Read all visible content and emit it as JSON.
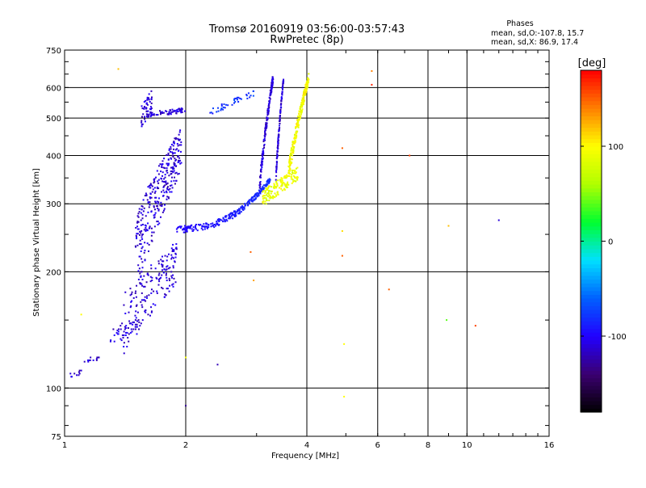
{
  "chart_data": {
    "type": "scatter",
    "title": "Tromsø 20160919 03:56:00-03:57:43",
    "subtitle": "RwPretec (8p)",
    "xlabel": "Frequency [MHz]",
    "ylabel": "Stationary phase Virtual Height [km]",
    "x_scale": "log",
    "y_scale": "log",
    "xlim": [
      1,
      16
    ],
    "ylim": [
      75,
      750
    ],
    "x_ticks": [
      1,
      2,
      4,
      6,
      8,
      10,
      16
    ],
    "y_ticks": [
      75,
      100,
      200,
      300,
      400,
      500,
      600,
      750
    ],
    "x_gridlines": [
      2,
      4,
      6,
      8,
      10
    ],
    "y_gridlines": [
      100,
      200,
      300,
      400,
      500,
      600
    ],
    "phase_stats": {
      "title": "Phases",
      "line_o": "mean, sd,O:-107.8, 15.7",
      "line_x": "mean, sd,X:  86.9, 17.4"
    },
    "colorbar": {
      "label": "[deg]",
      "range": [
        -180,
        180
      ],
      "ticks": [
        -100,
        0,
        100
      ],
      "colors": [
        "#000000",
        "#3b0070",
        "#2200ff",
        "#0060ff",
        "#00e0ff",
        "#00ff30",
        "#b0ff00",
        "#ffff00",
        "#ff8000",
        "#ff0000"
      ]
    },
    "series": [
      {
        "name": "O",
        "phase": -110,
        "points": []
      },
      {
        "name": "X",
        "phase": 90,
        "points": []
      }
    ]
  }
}
